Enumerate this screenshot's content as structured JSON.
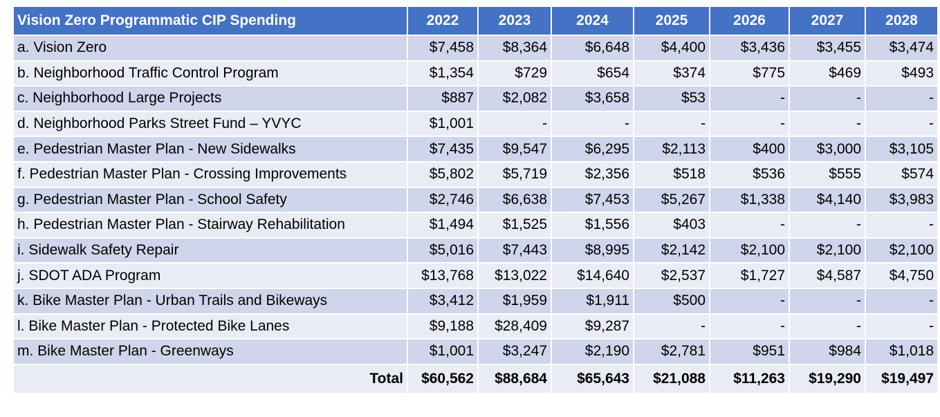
{
  "table": {
    "header": [
      "Vision Zero Programmatic CIP Spending",
      "2022",
      "2023",
      "2024",
      "2025",
      "2026",
      "2027",
      "2028"
    ],
    "rows": [
      [
        "a. Vision Zero",
        "$7,458",
        "$8,364",
        "$6,648",
        "$4,400",
        "$3,436",
        "$3,455",
        "$3,474"
      ],
      [
        "b. Neighborhood Traffic Control Program",
        "$1,354",
        "$729",
        "$654",
        "$374",
        "$775",
        "$469",
        "$493"
      ],
      [
        "c. Neighborhood Large Projects",
        "$887",
        "$2,082",
        "$3,658",
        "$53",
        "-",
        "-",
        "-"
      ],
      [
        "d. Neighborhood Parks Street Fund – YVYC",
        "$1,001",
        "-",
        "-",
        "-",
        "-",
        "-",
        "-"
      ],
      [
        "e. Pedestrian Master Plan - New Sidewalks",
        "$7,435",
        "$9,547",
        "$6,295",
        "$2,113",
        "$400",
        "$3,000",
        "$3,105"
      ],
      [
        "f.  Pedestrian Master Plan - Crossing Improvements",
        "$5,802",
        "$5,719",
        "$2,356",
        "$518",
        "$536",
        "$555",
        "$574"
      ],
      [
        "g. Pedestrian Master Plan - School Safety",
        "$2,746",
        "$6,638",
        "$7,453",
        "$5,267",
        "$1,338",
        "$4,140",
        "$3,983"
      ],
      [
        "h. Pedestrian Master Plan - Stairway Rehabilitation",
        "$1,494",
        "$1,525",
        "$1,556",
        "$403",
        "-",
        "-",
        "-"
      ],
      [
        "i.  Sidewalk Safety Repair",
        "$5,016",
        "$7,443",
        "$8,995",
        "$2,142",
        "$2,100",
        "$2,100",
        "$2,100"
      ],
      [
        "j.  SDOT ADA Program",
        "$13,768",
        "$13,022",
        "$14,640",
        "$2,537",
        "$1,727",
        "$4,587",
        "$4,750"
      ],
      [
        "k. Bike Master Plan - Urban Trails and Bikeways",
        "$3,412",
        "$1,959",
        "$1,911",
        "$500",
        "-",
        "-",
        "-"
      ],
      [
        "l.  Bike Master Plan - Protected Bike Lanes",
        "$9,188",
        "$28,409",
        "$9,287",
        "-",
        "-",
        "-",
        "-"
      ],
      [
        "m. Bike Master Plan - Greenways",
        "$1,001",
        "$3,247",
        "$2,190",
        "$2,781",
        "$951",
        "$984",
        "$1,018"
      ]
    ],
    "total": [
      "Total",
      "$60,562",
      "$88,684",
      "$65,643",
      "$21,088",
      "$11,263",
      "$19,290",
      "$19,497"
    ]
  }
}
